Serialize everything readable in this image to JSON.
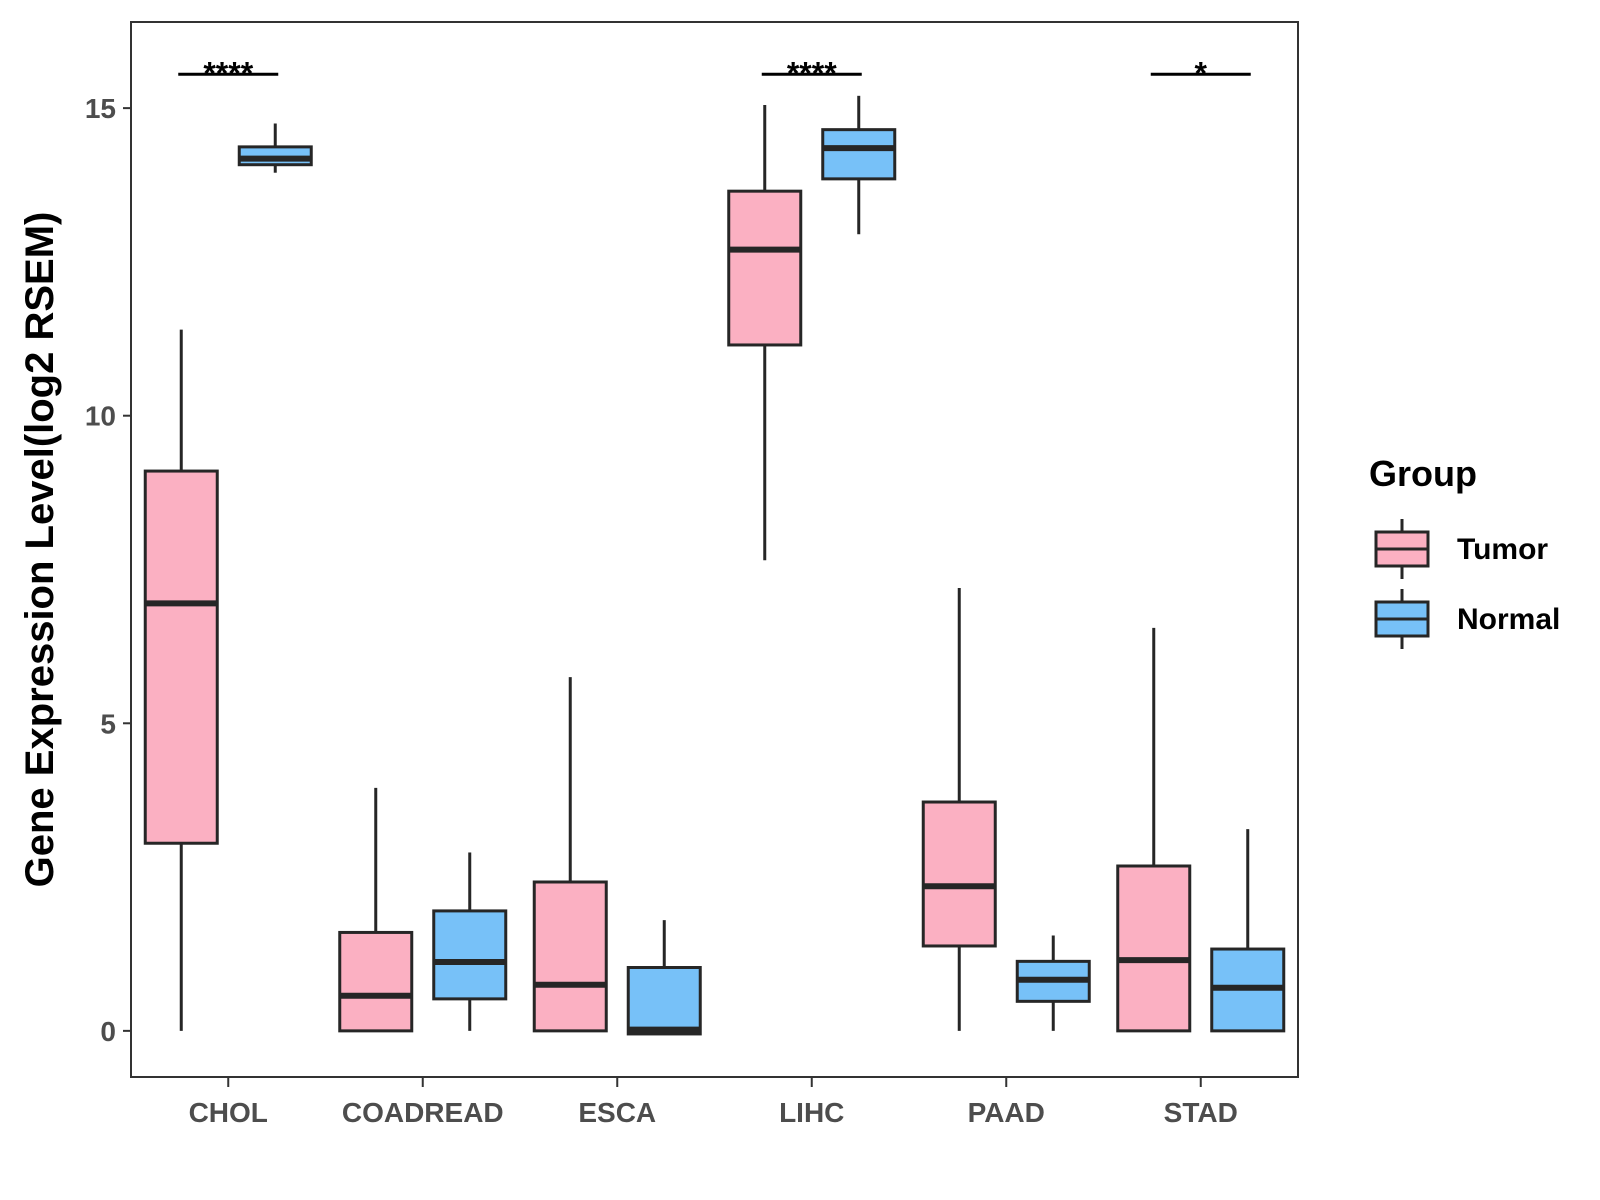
{
  "chart_data": {
    "type": "boxplot",
    "title": "",
    "xlabel": "",
    "ylabel": "Gene Expression Level(log2 RSEM)",
    "ylim": [
      -0.75,
      16.4
    ],
    "yticks": [
      0,
      5,
      10,
      15
    ],
    "categories": [
      "CHOL",
      "COADREAD",
      "ESCA",
      "LIHC",
      "PAAD",
      "STAD"
    ],
    "legend": {
      "title": "Group",
      "position": "right",
      "entries": [
        "Tumor",
        "Normal"
      ]
    },
    "colors": {
      "Tumor": "#fbb0c2",
      "Normal": "#77c1f8",
      "outline": "#262626"
    },
    "series": [
      {
        "name": "Tumor",
        "boxes": [
          {
            "category": "CHOL",
            "lower_whisker": 0.0,
            "q1": 3.05,
            "median": 6.95,
            "q3": 9.1,
            "upper_whisker": 11.4
          },
          {
            "category": "COADREAD",
            "lower_whisker": 0.0,
            "q1": 0.0,
            "median": 0.57,
            "q3": 1.6,
            "upper_whisker": 3.95
          },
          {
            "category": "ESCA",
            "lower_whisker": 0.0,
            "q1": 0.0,
            "median": 0.75,
            "q3": 2.42,
            "upper_whisker": 5.75
          },
          {
            "category": "LIHC",
            "lower_whisker": 7.65,
            "q1": 11.15,
            "median": 12.7,
            "q3": 13.65,
            "upper_whisker": 15.05
          },
          {
            "category": "PAAD",
            "lower_whisker": 0.0,
            "q1": 1.38,
            "median": 2.35,
            "q3": 3.72,
            "upper_whisker": 7.2
          },
          {
            "category": "STAD",
            "lower_whisker": 0.0,
            "q1": 0.0,
            "median": 1.15,
            "q3": 2.68,
            "upper_whisker": 6.55
          }
        ]
      },
      {
        "name": "Normal",
        "boxes": [
          {
            "category": "CHOL",
            "lower_whisker": 13.95,
            "q1": 14.08,
            "median": 14.18,
            "q3": 14.37,
            "upper_whisker": 14.75
          },
          {
            "category": "COADREAD",
            "lower_whisker": 0.0,
            "q1": 0.52,
            "median": 1.12,
            "q3": 1.95,
            "upper_whisker": 2.9
          },
          {
            "category": "ESCA",
            "lower_whisker": -0.05,
            "q1": -0.05,
            "median": 0.02,
            "q3": 1.03,
            "upper_whisker": 1.8
          },
          {
            "category": "LIHC",
            "lower_whisker": 12.95,
            "q1": 13.85,
            "median": 14.35,
            "q3": 14.65,
            "upper_whisker": 15.2
          },
          {
            "category": "PAAD",
            "lower_whisker": 0.0,
            "q1": 0.48,
            "median": 0.83,
            "q3": 1.13,
            "upper_whisker": 1.55
          },
          {
            "category": "STAD",
            "lower_whisker": 0.0,
            "q1": 0.0,
            "median": 0.7,
            "q3": 1.33,
            "upper_whisker": 3.28
          }
        ]
      }
    ],
    "annotations": [
      {
        "category": "CHOL",
        "label": "****",
        "y": 15.55
      },
      {
        "category": "LIHC",
        "label": "****",
        "y": 15.55
      },
      {
        "category": "STAD",
        "label": "*",
        "y": 15.55
      }
    ]
  }
}
